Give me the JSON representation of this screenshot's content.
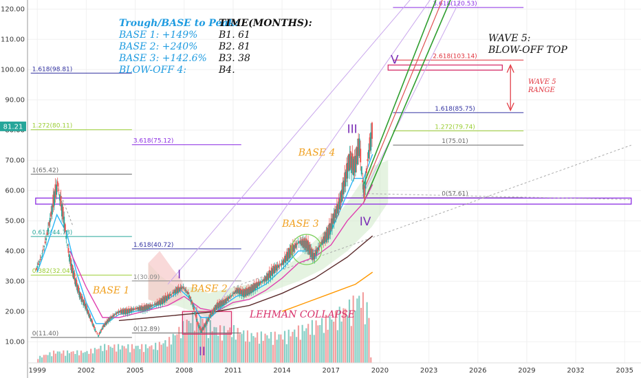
{
  "chart_data": {
    "type": "line",
    "ylim": [
      3,
      123
    ],
    "xlim": [
      1998.4,
      2036.0
    ],
    "y_ticks": [
      "10.00",
      "20.00",
      "30.00",
      "40.00",
      "50.00",
      "60.00",
      "70.00",
      "80.00",
      "90.00",
      "100.00",
      "110.00",
      "120.00"
    ],
    "y_tick_values": [
      10,
      20,
      30,
      40,
      50,
      60,
      70,
      80,
      90,
      100,
      110,
      120
    ],
    "x_ticks": [
      "1999",
      "2002",
      "2005",
      "2008",
      "2011",
      "2014",
      "2017",
      "2020",
      "2023",
      "2026",
      "2029",
      "2032",
      "2035"
    ],
    "x_tick_values": [
      1999,
      2002,
      2005,
      2008,
      2011,
      2014,
      2017,
      2020,
      2023,
      2026,
      2029,
      2032,
      2035
    ],
    "current_price": {
      "label": "81.21",
      "value": 81.21,
      "color": "#26a69a"
    },
    "price_series": [
      [
        1998.9,
        34
      ],
      [
        1999.2,
        38
      ],
      [
        1999.5,
        44
      ],
      [
        1999.8,
        52
      ],
      [
        2000.0,
        58
      ],
      [
        2000.2,
        62
      ],
      [
        2000.4,
        56
      ],
      [
        2000.6,
        50
      ],
      [
        2000.8,
        42
      ],
      [
        2001.0,
        36
      ],
      [
        2001.3,
        30
      ],
      [
        2001.6,
        25
      ],
      [
        2001.9,
        22
      ],
      [
        2002.2,
        18
      ],
      [
        2002.5,
        14
      ],
      [
        2002.7,
        12
      ],
      [
        2003.0,
        15
      ],
      [
        2003.3,
        17
      ],
      [
        2003.7,
        19
      ],
      [
        2004.0,
        20
      ],
      [
        2004.5,
        20
      ],
      [
        2005.0,
        21
      ],
      [
        2005.5,
        21
      ],
      [
        2006.0,
        22
      ],
      [
        2006.5,
        23
      ],
      [
        2007.0,
        25
      ],
      [
        2007.5,
        27
      ],
      [
        2007.9,
        28
      ],
      [
        2008.2,
        26
      ],
      [
        2008.5,
        22
      ],
      [
        2008.8,
        16
      ],
      [
        2009.0,
        13.5
      ],
      [
        2009.3,
        16
      ],
      [
        2009.6,
        19
      ],
      [
        2010.0,
        22
      ],
      [
        2010.4,
        23
      ],
      [
        2010.8,
        25
      ],
      [
        2011.2,
        27
      ],
      [
        2011.6,
        26
      ],
      [
        2012.0,
        27
      ],
      [
        2012.5,
        29
      ],
      [
        2013.0,
        31
      ],
      [
        2013.5,
        34
      ],
      [
        2014.0,
        36
      ],
      [
        2014.5,
        40
      ],
      [
        2015.0,
        43
      ],
      [
        2015.5,
        42
      ],
      [
        2015.9,
        38
      ],
      [
        2016.3,
        42
      ],
      [
        2016.8,
        46
      ],
      [
        2017.2,
        52
      ],
      [
        2017.5,
        56
      ],
      [
        2017.8,
        63
      ],
      [
        2018.1,
        70
      ],
      [
        2018.4,
        68
      ],
      [
        2018.7,
        75
      ],
      [
        2018.9,
        63
      ],
      [
        2019.0,
        59
      ],
      [
        2019.2,
        70
      ],
      [
        2019.4,
        77
      ],
      [
        2019.55,
        81.21
      ]
    ],
    "ma_fast": [
      [
        1999.0,
        33
      ],
      [
        1999.6,
        42
      ],
      [
        2000.2,
        52
      ],
      [
        2000.8,
        46
      ],
      [
        2001.4,
        33
      ],
      [
        2002.0,
        23
      ],
      [
        2002.6,
        16
      ],
      [
        2003.2,
        16
      ],
      [
        2004.0,
        19
      ],
      [
        2005.0,
        20
      ],
      [
        2006.0,
        21
      ],
      [
        2007.0,
        24
      ],
      [
        2007.8,
        27
      ],
      [
        2008.4,
        24
      ],
      [
        2009.0,
        18
      ],
      [
        2009.6,
        18
      ],
      [
        2010.4,
        22
      ],
      [
        2011.2,
        25
      ],
      [
        2012.0,
        26
      ],
      [
        2013.0,
        29
      ],
      [
        2014.0,
        34
      ],
      [
        2015.0,
        40
      ],
      [
        2016.0,
        40
      ],
      [
        2016.8,
        44
      ],
      [
        2017.6,
        54
      ],
      [
        2018.4,
        64
      ],
      [
        2019.0,
        64
      ],
      [
        2019.55,
        72
      ]
    ],
    "ma_medium": [
      [
        2001.0,
        40
      ],
      [
        2002.0,
        28
      ],
      [
        2003.0,
        18
      ],
      [
        2004.0,
        18
      ],
      [
        2005.5,
        20
      ],
      [
        2007.0,
        22
      ],
      [
        2008.0,
        25
      ],
      [
        2009.0,
        21
      ],
      [
        2010.0,
        20
      ],
      [
        2011.0,
        23
      ],
      [
        2012.0,
        24
      ],
      [
        2013.0,
        27
      ],
      [
        2014.0,
        31
      ],
      [
        2015.0,
        36
      ],
      [
        2016.0,
        38
      ],
      [
        2017.0,
        42
      ],
      [
        2018.0,
        50
      ],
      [
        2019.0,
        56
      ],
      [
        2019.55,
        62
      ]
    ],
    "ma_slow": [
      [
        2004.0,
        17
      ],
      [
        2006.0,
        18
      ],
      [
        2008.0,
        19
      ],
      [
        2010.0,
        20
      ],
      [
        2012.0,
        22
      ],
      [
        2014.0,
        26
      ],
      [
        2016.0,
        31
      ],
      [
        2018.0,
        38
      ],
      [
        2019.55,
        45
      ]
    ],
    "ma_long": [
      [
        2014.0,
        20
      ],
      [
        2015.5,
        23
      ],
      [
        2017.0,
        26
      ],
      [
        2018.5,
        29
      ],
      [
        2019.55,
        33
      ]
    ],
    "volume": [
      [
        1999,
        1
      ],
      [
        2000,
        2
      ],
      [
        2001,
        2
      ],
      [
        2002,
        2
      ],
      [
        2003,
        3
      ],
      [
        2004,
        3
      ],
      [
        2005,
        3
      ],
      [
        2006,
        3
      ],
      [
        2007,
        4
      ],
      [
        2008,
        7
      ],
      [
        2008.7,
        9
      ],
      [
        2009,
        8
      ],
      [
        2010,
        6
      ],
      [
        2011,
        6
      ],
      [
        2012,
        5
      ],
      [
        2013,
        5
      ],
      [
        2014,
        5
      ],
      [
        2015,
        6
      ],
      [
        2016,
        7
      ],
      [
        2017,
        8
      ],
      [
        2018,
        10
      ],
      [
        2018.8,
        12
      ],
      [
        2019.3,
        9
      ]
    ],
    "fib_left": [
      {
        "label": "1.618(98.81)",
        "value": 98.81,
        "color": "#3030a0",
        "x0": 1998.6,
        "x1": 2004.8
      },
      {
        "label": "1.272(80.11)",
        "value": 80.11,
        "color": "#9acd32",
        "x0": 1998.6,
        "x1": 2004.8
      },
      {
        "label": "3.618(75.12)",
        "value": 75.12,
        "color": "#8a2be2",
        "x0": 2004.8,
        "x1": 2011.5
      },
      {
        "label": "1(65.42)",
        "value": 65.42,
        "color": "#666666",
        "x0": 1998.6,
        "x1": 2004.8
      },
      {
        "label": "0.618(44.78)",
        "value": 44.78,
        "color": "#26a69a",
        "x0": 1998.6,
        "x1": 2004.8
      },
      {
        "label": "1.618(40.72)",
        "value": 40.72,
        "color": "#3030a0",
        "x0": 2004.8,
        "x1": 2011.5
      },
      {
        "label": "0.382(32.04)",
        "value": 32.04,
        "color": "#9acd32",
        "x0": 1998.6,
        "x1": 2004.8
      },
      {
        "label": "1(30.09)",
        "value": 30.09,
        "color": "#888888",
        "x0": 2004.8,
        "x1": 2011.5
      },
      {
        "label": "0(12.89)",
        "value": 12.89,
        "color": "#666666",
        "x0": 2004.8,
        "x1": 2011.5
      },
      {
        "label": "0(11.40)",
        "value": 11.4,
        "color": "#666666",
        "x0": 1998.6,
        "x1": 2004.8
      }
    ],
    "fib_right": [
      {
        "label": "3.618(120.53)",
        "value": 120.53,
        "color": "#8a2be2"
      },
      {
        "label": "2.618(103.14)",
        "value": 103.14,
        "color": "#e0303a"
      },
      {
        "label": "1.618(85.75)",
        "value": 85.75,
        "color": "#3030a0"
      },
      {
        "label": "1.272(79.74)",
        "value": 79.74,
        "color": "#9acd32"
      },
      {
        "label": "1(75.01)",
        "value": 75.01,
        "color": "#666666"
      },
      {
        "label": "0(57.61)",
        "value": 57.61,
        "color": "#666666"
      }
    ],
    "support_zone": {
      "y_low": 55.5,
      "y_high": 57.5,
      "color": "#8a2be2"
    },
    "wave5_target_zone": {
      "x0": 2020.5,
      "x1": 2027.5,
      "y_low": 99.8,
      "y_high": 101.5,
      "color": "#d8306a"
    },
    "lehman_box": {
      "x0": 2007.9,
      "x1": 2010.9,
      "y_low": 12.5,
      "y_high": 20,
      "color": "#d8306a"
    },
    "annotations": {
      "header_left": [
        "Trough/BASE to Peak:",
        "BASE 1: +149%",
        "BASE 2: +240%",
        "BASE 3: +142.6%",
        "BLOW-OFF 4:"
      ],
      "header_right": [
        "TIME(MONTHS):",
        "B1. 61",
        "B2. 81",
        "B3. 38",
        "B4."
      ],
      "wave5_title": [
        "WAVE 5:",
        "BLOW-OFF TOP"
      ],
      "wave5_range": [
        "WAVE 5",
        "RANGE"
      ],
      "bases": [
        {
          "label": "BASE 1",
          "x": 2002.4,
          "y": 26
        },
        {
          "label": "BASE 2",
          "x": 2008.4,
          "y": 26.5
        },
        {
          "label": "BASE 3",
          "x": 2014.0,
          "y": 48
        },
        {
          "label": "BASE 4",
          "x": 2015.0,
          "y": 71.5
        }
      ],
      "waves": [
        {
          "label": "I",
          "x": 2007.7,
          "y": 31
        },
        {
          "label": "II",
          "x": 2009.1,
          "y": 5.5
        },
        {
          "label": "III",
          "x": 2018.3,
          "y": 79
        },
        {
          "label": "IV",
          "x": 2019.1,
          "y": 48.5
        },
        {
          "label": "V",
          "x": 2020.9,
          "y": 102
        }
      ],
      "lehman": "LEHMAN COLLAPSE"
    }
  }
}
